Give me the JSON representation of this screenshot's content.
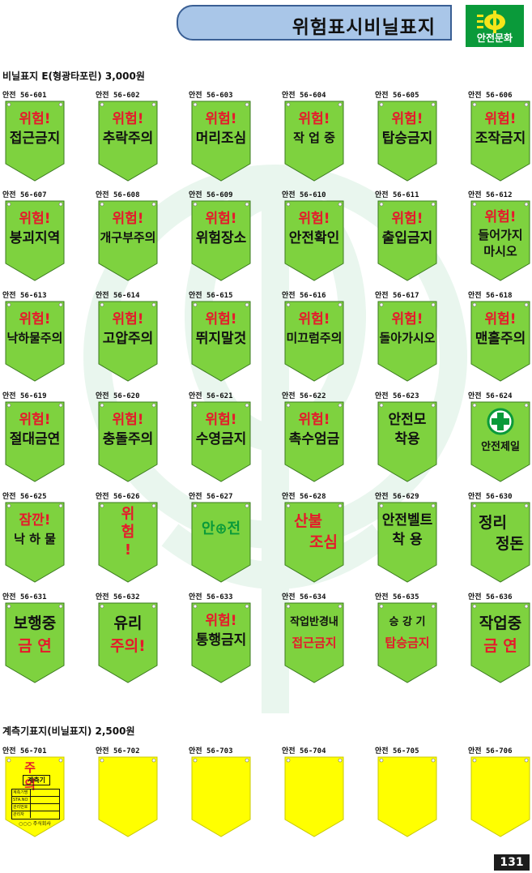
{
  "header": {
    "title": "위험표시비닐표지",
    "logo_text": "안전문화"
  },
  "section1": {
    "label": "비닐표지 E(형광타포린) 3,000원"
  },
  "section2": {
    "label": "계측기표지(비닐표지)  2,500원"
  },
  "colors": {
    "sign_green": "#7ed23f",
    "sign_yellow": "#ffff00",
    "red": "#e6192b",
    "accent_green": "#0a9a3a"
  },
  "signs": [
    {
      "code": "안전 56-601",
      "line1": "위험!",
      "line2": "접근금지",
      "style": "std"
    },
    {
      "code": "안전 56-602",
      "line1": "위험!",
      "line2": "추락주의",
      "style": "std"
    },
    {
      "code": "안전 56-603",
      "line1": "위험!",
      "line2": "머리조심",
      "style": "std"
    },
    {
      "code": "안전 56-604",
      "line1": "위험!",
      "line2": "작 업 중",
      "style": "std"
    },
    {
      "code": "안전 56-605",
      "line1": "위험!",
      "line2": "탑승금지",
      "style": "std"
    },
    {
      "code": "안전 56-606",
      "line1": "위험!",
      "line2": "조작금지",
      "style": "std"
    },
    {
      "code": "안전 56-607",
      "line1": "위험!",
      "line2": "붕괴지역",
      "style": "std"
    },
    {
      "code": "안전 56-608",
      "line1": "위험!",
      "line2": "개구부주의",
      "style": "std"
    },
    {
      "code": "안전 56-609",
      "line1": "위험!",
      "line2": "위험장소",
      "style": "std"
    },
    {
      "code": "안전 56-610",
      "line1": "위험!",
      "line2": "안전확인",
      "style": "std"
    },
    {
      "code": "안전 56-611",
      "line1": "위험!",
      "line2": "출입금지",
      "style": "std"
    },
    {
      "code": "안전 56-612",
      "line1": "위험!",
      "line2": "들어가지",
      "line3": "마시오",
      "style": "std3"
    },
    {
      "code": "안전 56-613",
      "line1": "위험!",
      "line2": "낙하물주의",
      "style": "std"
    },
    {
      "code": "안전 56-614",
      "line1": "위험!",
      "line2": "고압주의",
      "style": "std"
    },
    {
      "code": "안전 56-615",
      "line1": "위험!",
      "line2": "뛰지말것",
      "style": "std"
    },
    {
      "code": "안전 56-616",
      "line1": "위험!",
      "line2": "미끄럼주의",
      "style": "std"
    },
    {
      "code": "안전 56-617",
      "line1": "위험!",
      "line2": "돌아가시오",
      "style": "std"
    },
    {
      "code": "안전 56-618",
      "line1": "위험!",
      "line2": "맨홀주의",
      "style": "std"
    },
    {
      "code": "안전 56-619",
      "line1": "위험!",
      "line2": "절대금연",
      "style": "std"
    },
    {
      "code": "안전 56-620",
      "line1": "위험!",
      "line2": "충돌주의",
      "style": "std"
    },
    {
      "code": "안전 56-621",
      "line1": "위험!",
      "line2": "수영금지",
      "style": "std"
    },
    {
      "code": "안전 56-622",
      "line1": "위험!",
      "line2": "촉수엄금",
      "style": "std"
    },
    {
      "code": "안전 56-623",
      "line1": "안전모",
      "line2": "착용",
      "style": "black2"
    },
    {
      "code": "안전 56-624",
      "line1": "안전제일",
      "style": "cross"
    },
    {
      "code": "안전 56-625",
      "line1": "잠깐!",
      "line2": "낙 하 물",
      "style": "std"
    },
    {
      "code": "안전 56-626",
      "line1": "위",
      "line2": "험",
      "line3": "!",
      "style": "vertical"
    },
    {
      "code": "안전 56-627",
      "line1": "안⊕전",
      "style": "green1"
    },
    {
      "code": "안전 56-628",
      "line1": "산불",
      "line2": "조심",
      "style": "red2"
    },
    {
      "code": "안전 56-629",
      "line1": "안전벨트",
      "line2": "착 용",
      "style": "black2"
    },
    {
      "code": "안전 56-630",
      "line1": "정리",
      "line2": "정돈",
      "style": "black2big"
    },
    {
      "code": "안전 56-631",
      "line1": "보행중",
      "line2": "금 연",
      "style": "blackred"
    },
    {
      "code": "안전 56-632",
      "line1": "유리",
      "line2": "주의!",
      "style": "blackred"
    },
    {
      "code": "안전 56-633",
      "line1": "위험!",
      "line2": "통행금지",
      "style": "std"
    },
    {
      "code": "안전 56-634",
      "line1": "작업반경내",
      "line2": "접근금지",
      "style": "blackredsmall"
    },
    {
      "code": "안전 56-635",
      "line1": "승 강 기",
      "line2": "탑승금지",
      "style": "blackredsmall"
    },
    {
      "code": "안전 56-636",
      "line1": "작업중",
      "line2": "금 연",
      "style": "blackred"
    }
  ],
  "gauge_signs": [
    {
      "code": "안전 56-701",
      "title": "주 의",
      "subtitle": "계측기",
      "rows": [
        "계측기명",
        "STA.NO",
        "관리번호",
        "관리자"
      ],
      "footer": "○○○ 주식회사"
    },
    {
      "code": "안전 56-702"
    },
    {
      "code": "안전 56-703"
    },
    {
      "code": "안전 56-704"
    },
    {
      "code": "안전 56-705"
    },
    {
      "code": "안전 56-706"
    }
  ],
  "page_number": "131"
}
